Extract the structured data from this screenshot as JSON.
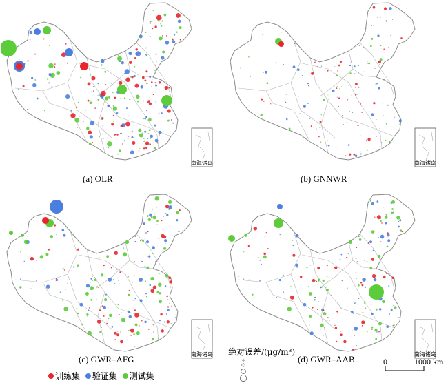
{
  "panels": [
    {
      "id": "ols",
      "caption": "(a) OLR",
      "inset_label": "南海诸岛"
    },
    {
      "id": "gnnwr",
      "caption": "(b) GNNWR",
      "inset_label": "南海诸岛"
    },
    {
      "id": "gwr-afg",
      "caption": "(c) GWR–AFG",
      "inset_label": "南海诸岛"
    },
    {
      "id": "gwr-aab",
      "caption": "(d) GWR–AAB",
      "inset_label": "南海诸岛"
    }
  ],
  "legend": {
    "title": "绝对误差/(μg/m³)",
    "sets": [
      {
        "label": "训练集",
        "color": "#e8262b"
      },
      {
        "label": "验证集",
        "color": "#4a7fe0"
      },
      {
        "label": "测试集",
        "color": "#5ccc3a"
      }
    ]
  },
  "scalebar": {
    "zero": "0",
    "max": "1000 km"
  },
  "colors": {
    "border": "#8a8a8a",
    "province": "#b5b5b5"
  }
}
